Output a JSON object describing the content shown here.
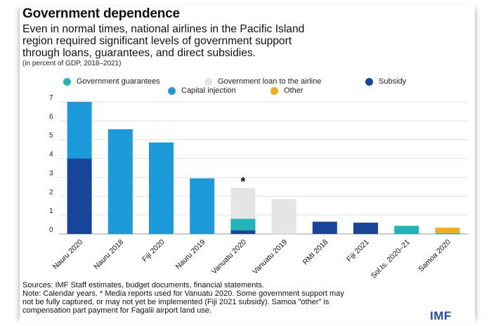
{
  "header": {
    "title": "Government dependence",
    "subtitle_lines": [
      "Even in normal times, national airlines in the Pacific Island",
      "region required significant levels of government support",
      "through loans, guarantees, and direct subsidies."
    ],
    "units": "(in percent of GDP, 2018–2021)"
  },
  "legend": [
    {
      "label": "Government guarantees",
      "color": "#1fb5b8"
    },
    {
      "label": "Government loan to the airline",
      "color": "#e4e6e6"
    },
    {
      "label": "Subsidy",
      "color": "#16459a"
    },
    {
      "label": "Capital injection",
      "color": "#1c9ad9"
    },
    {
      "label": "Other",
      "color": "#f2ad1f"
    }
  ],
  "chart_data": {
    "type": "bar",
    "stacked": true,
    "ylim": [
      0,
      7
    ],
    "yticks": [
      0,
      1,
      2,
      3,
      4,
      5,
      6,
      7
    ],
    "grid": true,
    "categories": [
      "Nauru 2020",
      "Nauru 2018",
      "Fiji 2020",
      "Nauru 2019",
      "Vanuatu 2020",
      "Vanuatu 2019",
      "RMI 2018",
      "Fiji 2021",
      "Sol.Is. 2020–21",
      "Samoa 2020"
    ],
    "series": [
      {
        "name": "Subsidy",
        "color": "#16459a",
        "values": [
          4.0,
          0,
          0,
          0,
          0.2,
          0,
          0.65,
          0.6,
          0,
          0
        ]
      },
      {
        "name": "Capital injection",
        "color": "#1c9ad9",
        "values": [
          3.0,
          5.55,
          4.85,
          2.95,
          0,
          0,
          0,
          0,
          0,
          0
        ]
      },
      {
        "name": "Government guarantees",
        "color": "#1fb5b8",
        "values": [
          0,
          0,
          0,
          0,
          0.6,
          0,
          0,
          0,
          0.43,
          0.05
        ]
      },
      {
        "name": "Government loan to the airline",
        "color": "#e4e6e6",
        "values": [
          0,
          0,
          0,
          0,
          1.65,
          1.85,
          0,
          0,
          0,
          0
        ]
      },
      {
        "name": "Other",
        "color": "#f2ad1f",
        "values": [
          0,
          0,
          0,
          0,
          0,
          0,
          0,
          0,
          0,
          0.28
        ]
      }
    ],
    "annotations": [
      {
        "category": "Vanuatu 2020",
        "text": "*"
      }
    ]
  },
  "footer": {
    "lines": [
      "Sources: IMF Staff estimates, budget documents, financial statements.",
      "Note: Calendar years. * Media reports used for Vanuatu 2020. Some government support may",
      "not be fully captured, or may not yet be implemented (Fiji 2021 subsidy). Samoa \"other\" is",
      "compensation part payment for Fagalii airport land use."
    ],
    "logo": "IMF"
  }
}
